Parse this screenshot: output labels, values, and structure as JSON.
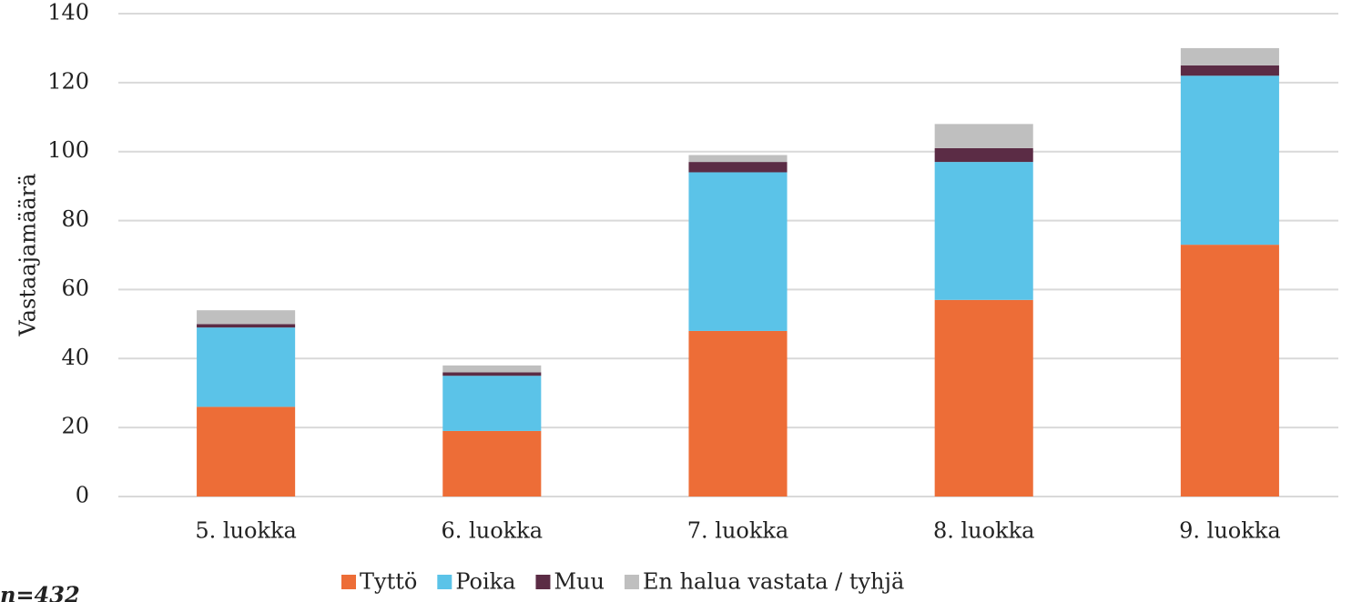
{
  "chart_data": {
    "type": "stacked_bar",
    "y_label": "Vastaajamäärä",
    "note": "n=432",
    "categories": [
      "5. luokka",
      "6. luokka",
      "7. luokka",
      "8. luokka",
      "9. luokka"
    ],
    "series": [
      {
        "name": "Tyttö",
        "color": "#ed6d37",
        "values": [
          26,
          19,
          48,
          57,
          73
        ]
      },
      {
        "name": "Poika",
        "color": "#5bc3e8",
        "values": [
          23,
          16,
          46,
          40,
          49
        ]
      },
      {
        "name": "Muu",
        "color": "#5b2c45",
        "values": [
          1,
          1,
          3,
          4,
          3
        ]
      },
      {
        "name": "En halua vastata / tyhjä",
        "color": "#bfbfbf",
        "values": [
          4,
          2,
          2,
          7,
          5
        ]
      }
    ],
    "ylim": [
      0,
      140
    ],
    "yticks": [
      0,
      20,
      40,
      60,
      80,
      100,
      120,
      140
    ],
    "grid": true
  }
}
